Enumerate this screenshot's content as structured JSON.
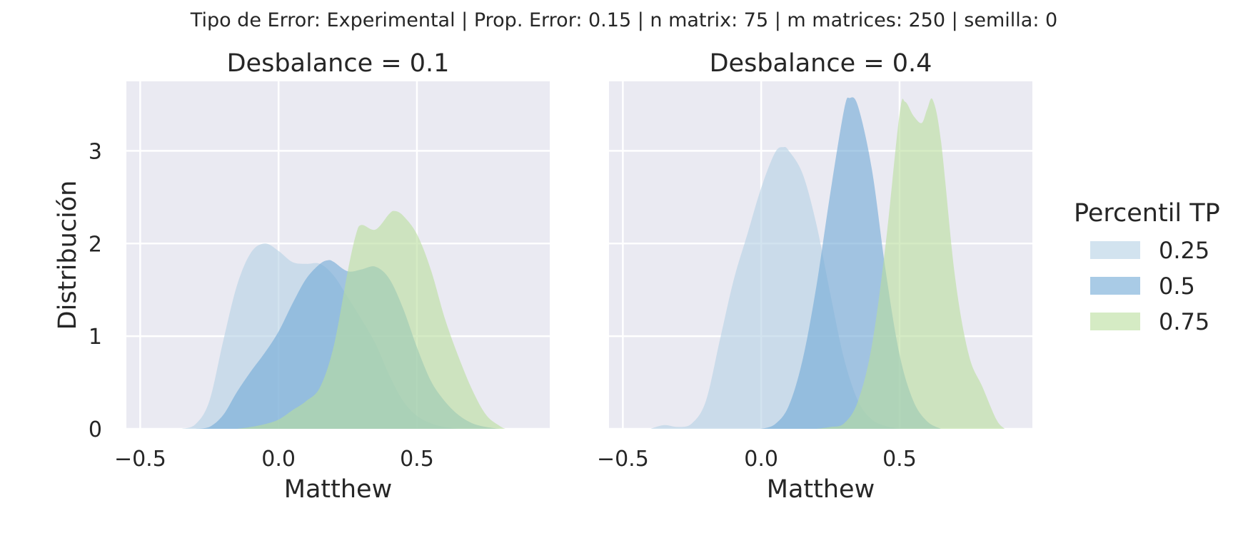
{
  "figure": {
    "suptitle": "Tipo de Error: Experimental | Prop. Error: 0.15 | n matrix: 75 | m matrices: 250 | semilla: 0",
    "background_color": "#EAEAF2",
    "grid_color": "#FFFFFF",
    "fill_opacity": 0.6
  },
  "legend": {
    "title": "Percentil TP",
    "placement": "right"
  },
  "chart_data": {
    "type": "area",
    "subtype": "kde",
    "xlabel": "Matthew",
    "ylabel": "Distribución",
    "xlim": [
      -0.55,
      0.98
    ],
    "ylim": [
      0,
      3.75
    ],
    "xticks": [
      -0.5,
      0.0,
      0.5
    ],
    "xtick_labels": [
      "−0.5",
      "0.0",
      "0.5"
    ],
    "yticks": [
      0,
      1,
      2,
      3
    ],
    "ytick_labels": [
      "0",
      "1",
      "2",
      "3"
    ],
    "grid": true,
    "series_names": [
      "0.25",
      "0.5",
      "0.75"
    ],
    "series_colors": [
      "#B4D0E5",
      "#6FA8D6",
      "#B9DE9C"
    ],
    "panels": [
      {
        "title": "Desbalance = 0.1",
        "series": [
          {
            "name": "0.25",
            "x": [
              -0.35,
              -0.3,
              -0.25,
              -0.2,
              -0.15,
              -0.1,
              -0.05,
              0.0,
              0.05,
              0.1,
              0.15,
              0.2,
              0.25,
              0.3,
              0.35,
              0.4,
              0.45,
              0.5,
              0.55,
              0.6,
              0.65
            ],
            "y": [
              0,
              0.05,
              0.3,
              0.95,
              1.55,
              1.9,
              2.0,
              1.92,
              1.8,
              1.78,
              1.78,
              1.65,
              1.42,
              1.18,
              0.92,
              0.58,
              0.3,
              0.14,
              0.06,
              0.02,
              0
            ]
          },
          {
            "name": "0.5",
            "x": [
              -0.3,
              -0.25,
              -0.2,
              -0.15,
              -0.1,
              -0.05,
              0.0,
              0.05,
              0.1,
              0.15,
              0.18,
              0.2,
              0.25,
              0.3,
              0.35,
              0.4,
              0.45,
              0.5,
              0.55,
              0.6,
              0.65,
              0.7,
              0.75,
              0.8
            ],
            "y": [
              0,
              0.02,
              0.15,
              0.4,
              0.62,
              0.82,
              1.05,
              1.35,
              1.62,
              1.78,
              1.82,
              1.8,
              1.7,
              1.72,
              1.75,
              1.62,
              1.3,
              0.88,
              0.52,
              0.3,
              0.15,
              0.06,
              0.02,
              0
            ]
          },
          {
            "name": "0.75",
            "x": [
              -0.15,
              -0.1,
              -0.05,
              0.0,
              0.05,
              0.1,
              0.15,
              0.2,
              0.25,
              0.28,
              0.3,
              0.35,
              0.4,
              0.42,
              0.45,
              0.5,
              0.55,
              0.6,
              0.65,
              0.7,
              0.75,
              0.8,
              0.82
            ],
            "y": [
              0,
              0.02,
              0.05,
              0.1,
              0.2,
              0.3,
              0.45,
              0.9,
              1.7,
              2.1,
              2.2,
              2.15,
              2.32,
              2.35,
              2.3,
              2.1,
              1.72,
              1.2,
              0.78,
              0.42,
              0.15,
              0.03,
              0
            ]
          }
        ]
      },
      {
        "title": "Desbalance = 0.4",
        "series": [
          {
            "name": "0.25",
            "x": [
              -0.4,
              -0.35,
              -0.3,
              -0.25,
              -0.2,
              -0.15,
              -0.1,
              -0.05,
              0.0,
              0.05,
              0.08,
              0.1,
              0.15,
              0.2,
              0.25,
              0.3,
              0.35,
              0.4,
              0.45,
              0.5
            ],
            "y": [
              0,
              0.04,
              0.02,
              0.06,
              0.3,
              0.95,
              1.6,
              2.1,
              2.6,
              2.98,
              3.04,
              3.0,
              2.75,
              2.2,
              1.45,
              0.75,
              0.3,
              0.1,
              0.03,
              0
            ]
          },
          {
            "name": "0.5",
            "x": [
              0.0,
              0.05,
              0.1,
              0.15,
              0.2,
              0.25,
              0.3,
              0.32,
              0.35,
              0.4,
              0.45,
              0.5,
              0.55,
              0.6,
              0.65
            ],
            "y": [
              0,
              0.05,
              0.25,
              0.75,
              1.55,
              2.55,
              3.45,
              3.57,
              3.48,
              2.8,
              1.7,
              0.8,
              0.3,
              0.08,
              0
            ]
          },
          {
            "name": "0.75",
            "x": [
              0.2,
              0.25,
              0.3,
              0.35,
              0.4,
              0.45,
              0.5,
              0.52,
              0.55,
              0.58,
              0.6,
              0.62,
              0.65,
              0.7,
              0.75,
              0.8,
              0.85,
              0.88
            ],
            "y": [
              0,
              0.02,
              0.06,
              0.3,
              0.9,
              2.0,
              3.4,
              3.53,
              3.38,
              3.3,
              3.45,
              3.55,
              3.1,
              1.65,
              0.8,
              0.45,
              0.1,
              0
            ]
          }
        ]
      }
    ]
  }
}
